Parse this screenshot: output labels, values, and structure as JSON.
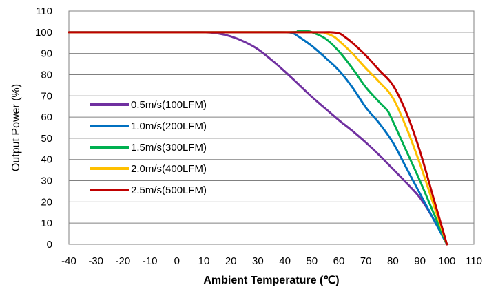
{
  "chart_data": {
    "type": "line",
    "title": "",
    "xlabel": "Ambient Temperature (℃)",
    "ylabel": "Output Power  (%)",
    "xlim": [
      -40,
      110
    ],
    "ylim": [
      0,
      110
    ],
    "x_ticks": [
      "-40",
      "-30",
      "-20",
      "-10",
      "0",
      "10",
      "20",
      "30",
      "40",
      "50",
      "60",
      "70",
      "80",
      "90",
      "100",
      "110"
    ],
    "y_ticks": [
      "0",
      "10",
      "20",
      "30",
      "40",
      "50",
      "60",
      "70",
      "80",
      "90",
      "100",
      "110"
    ],
    "grid": "horizontal",
    "legend_position": "left-center",
    "series": [
      {
        "name": "0.5m/s(100LFM)",
        "color": "#7030A0",
        "points": [
          [
            -40,
            100
          ],
          [
            0,
            100
          ],
          [
            10,
            100
          ],
          [
            15,
            99.5
          ],
          [
            20,
            98
          ],
          [
            25,
            95.5
          ],
          [
            30,
            92
          ],
          [
            35,
            87
          ],
          [
            40,
            81.5
          ],
          [
            45,
            75.5
          ],
          [
            50,
            69.5
          ],
          [
            55,
            64
          ],
          [
            60,
            58.5
          ],
          [
            65,
            53.5
          ],
          [
            70,
            48
          ],
          [
            75,
            42
          ],
          [
            80,
            35.5
          ],
          [
            85,
            29
          ],
          [
            90,
            22
          ],
          [
            95,
            12
          ],
          [
            100,
            0
          ]
        ]
      },
      {
        "name": "1.0m/s(200LFM)",
        "color": "#0070C0",
        "points": [
          [
            -40,
            100
          ],
          [
            0,
            100
          ],
          [
            30,
            100
          ],
          [
            40,
            100
          ],
          [
            43,
            99.5
          ],
          [
            45,
            98
          ],
          [
            50,
            93.5
          ],
          [
            55,
            88
          ],
          [
            60,
            82
          ],
          [
            65,
            74
          ],
          [
            70,
            64.5
          ],
          [
            75,
            57
          ],
          [
            80,
            48
          ],
          [
            85,
            36
          ],
          [
            90,
            24
          ],
          [
            95,
            12
          ],
          [
            100,
            0
          ]
        ]
      },
      {
        "name": "1.5m/s(300LFM)",
        "color": "#00B050",
        "points": [
          [
            -40,
            100
          ],
          [
            0,
            100
          ],
          [
            40,
            100
          ],
          [
            45,
            100.5
          ],
          [
            48,
            100.5
          ],
          [
            50,
            100
          ],
          [
            55,
            97
          ],
          [
            60,
            91
          ],
          [
            65,
            83
          ],
          [
            70,
            74
          ],
          [
            75,
            67
          ],
          [
            78,
            63
          ],
          [
            80,
            58
          ],
          [
            85,
            44
          ],
          [
            90,
            30
          ],
          [
            95,
            15
          ],
          [
            100,
            0
          ]
        ]
      },
      {
        "name": "2.0m/s(400LFM)",
        "color": "#FFC000",
        "points": [
          [
            -40,
            100
          ],
          [
            0,
            100
          ],
          [
            50,
            100
          ],
          [
            55,
            99.5
          ],
          [
            58,
            98
          ],
          [
            60,
            96
          ],
          [
            65,
            90
          ],
          [
            70,
            83
          ],
          [
            75,
            76.5
          ],
          [
            80,
            69
          ],
          [
            85,
            55
          ],
          [
            90,
            38
          ],
          [
            95,
            19
          ],
          [
            100,
            0
          ]
        ]
      },
      {
        "name": "2.5m/s(500LFM)",
        "color": "#C00000",
        "points": [
          [
            -40,
            100
          ],
          [
            0,
            100
          ],
          [
            50,
            100
          ],
          [
            57,
            100
          ],
          [
            60,
            99.5
          ],
          [
            62,
            98
          ],
          [
            65,
            95
          ],
          [
            70,
            89
          ],
          [
            75,
            82
          ],
          [
            80,
            75
          ],
          [
            85,
            62
          ],
          [
            90,
            44
          ],
          [
            95,
            22
          ],
          [
            100,
            0
          ]
        ]
      }
    ]
  }
}
